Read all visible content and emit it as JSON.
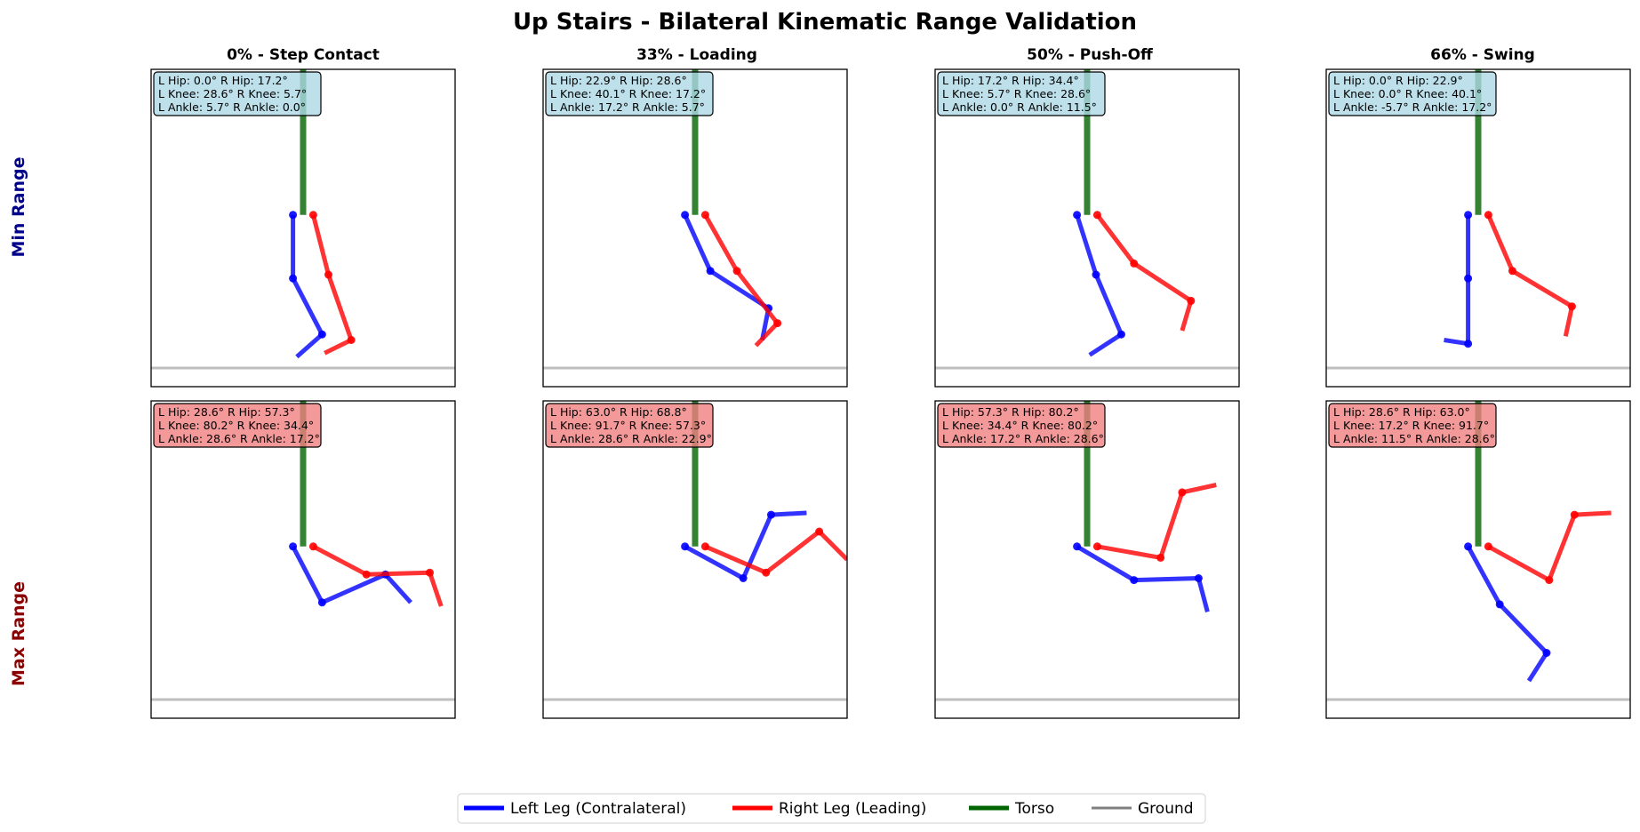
{
  "figure": {
    "title": "Up Stairs - Bilateral Kinematic Range Validation"
  },
  "chart_data": {
    "type": "stick-figure-grid",
    "rows": [
      {
        "key": "min",
        "label": "Min Range",
        "label_color": "#00008b",
        "box_color": "#add8e6"
      },
      {
        "key": "max",
        "label": "Max Range",
        "label_color": "#8b0000",
        "box_color": "#f08080"
      }
    ],
    "columns": [
      {
        "title": "0% - Step Contact"
      },
      {
        "title": "33% - Loading"
      },
      {
        "title": "50% - Push-Off"
      },
      {
        "title": "66% - Swing"
      }
    ],
    "panels": [
      {
        "row": 0,
        "col": 0,
        "angles": {
          "l_hip": 0.0,
          "r_hip": 17.2,
          "l_knee": 28.6,
          "r_knee": 5.7,
          "l_ankle": 5.7,
          "r_ankle": 0.0
        },
        "lines": [
          "L Hip: 0.0°  R Hip: 17.2°",
          "L Knee: 28.6°  R Knee: 5.7°",
          "L Ankle: 5.7°  R Ankle: 0.0°"
        ],
        "left_leg": [
          [
            -0.08,
            0.82
          ],
          [
            -0.08,
            0.48
          ],
          [
            0.15,
            0.18
          ],
          [
            -0.05,
            0.06
          ]
        ],
        "right_leg": [
          [
            0.08,
            0.82
          ],
          [
            0.2,
            0.5
          ],
          [
            0.38,
            0.15
          ],
          [
            0.17,
            0.08
          ]
        ]
      },
      {
        "row": 0,
        "col": 1,
        "angles": {
          "l_hip": 22.9,
          "r_hip": 28.6,
          "l_knee": 40.1,
          "r_knee": 17.2,
          "l_ankle": 17.2,
          "r_ankle": 5.7
        },
        "lines": [
          "L Hip: 22.9°  R Hip: 28.6°",
          "L Knee: 40.1°  R Knee: 17.2°",
          "L Ankle: 17.2°  R Ankle: 5.7°"
        ],
        "left_leg": [
          [
            -0.08,
            0.82
          ],
          [
            0.12,
            0.52
          ],
          [
            0.58,
            0.32
          ],
          [
            0.53,
            0.15
          ]
        ],
        "right_leg": [
          [
            0.08,
            0.82
          ],
          [
            0.33,
            0.52
          ],
          [
            0.65,
            0.24
          ],
          [
            0.48,
            0.12
          ]
        ]
      },
      {
        "row": 0,
        "col": 2,
        "angles": {
          "l_hip": 17.2,
          "r_hip": 34.4,
          "l_knee": 5.7,
          "r_knee": 28.6,
          "l_ankle": 0.0,
          "r_ankle": 11.5
        },
        "lines": [
          "L Hip: 17.2°  R Hip: 34.4°",
          "L Knee: 5.7°  R Knee: 28.6°",
          "L Ankle: 0.0°  R Ankle: 11.5°"
        ],
        "left_leg": [
          [
            -0.08,
            0.82
          ],
          [
            0.07,
            0.5
          ],
          [
            0.27,
            0.18
          ],
          [
            0.02,
            0.07
          ]
        ],
        "right_leg": [
          [
            0.08,
            0.82
          ],
          [
            0.37,
            0.56
          ],
          [
            0.82,
            0.36
          ],
          [
            0.75,
            0.2
          ]
        ]
      },
      {
        "row": 0,
        "col": 3,
        "angles": {
          "l_hip": 0.0,
          "r_hip": 22.9,
          "l_knee": 0.0,
          "r_knee": 40.1,
          "l_ankle": -5.7,
          "r_ankle": 17.2
        },
        "lines": [
          "L Hip: 0.0°  R Hip: 22.9°",
          "L Knee: 0.0°  R Knee: 40.1°",
          "L Ankle: -5.7°  R Ankle: 17.2°"
        ],
        "left_leg": [
          [
            -0.08,
            0.82
          ],
          [
            -0.08,
            0.48
          ],
          [
            -0.08,
            0.13
          ],
          [
            -0.27,
            0.15
          ]
        ],
        "right_leg": [
          [
            0.08,
            0.82
          ],
          [
            0.27,
            0.52
          ],
          [
            0.74,
            0.33
          ],
          [
            0.69,
            0.17
          ]
        ]
      },
      {
        "row": 1,
        "col": 0,
        "angles": {
          "l_hip": 28.6,
          "r_hip": 57.3,
          "l_knee": 80.2,
          "r_knee": 34.4,
          "l_ankle": 28.6,
          "r_ankle": 17.2
        },
        "lines": [
          "L Hip: 28.6°  R Hip: 57.3°",
          "L Knee: 80.2°  R Knee: 34.4°",
          "L Ankle: 28.6°  R Ankle: 17.2°"
        ],
        "left_leg": [
          [
            -0.08,
            0.82
          ],
          [
            0.15,
            0.52
          ],
          [
            0.65,
            0.67
          ],
          [
            0.85,
            0.52
          ]
        ],
        "right_leg": [
          [
            0.08,
            0.82
          ],
          [
            0.5,
            0.67
          ],
          [
            1.0,
            0.68
          ],
          [
            1.09,
            0.5
          ]
        ]
      },
      {
        "row": 1,
        "col": 1,
        "angles": {
          "l_hip": 63.0,
          "r_hip": 68.8,
          "l_knee": 91.7,
          "r_knee": 57.3,
          "l_ankle": 28.6,
          "r_ankle": 22.9
        },
        "lines": [
          "L Hip: 63.0°  R Hip: 68.8°",
          "L Knee: 91.7°  R Knee: 57.3°",
          "L Ankle: 28.6°  R Ankle: 22.9°"
        ],
        "left_leg": [
          [
            -0.08,
            0.82
          ],
          [
            0.38,
            0.65
          ],
          [
            0.6,
            0.99
          ],
          [
            0.88,
            1.0
          ]
        ],
        "right_leg": [
          [
            0.08,
            0.82
          ],
          [
            0.56,
            0.68
          ],
          [
            0.98,
            0.9
          ],
          [
            1.2,
            0.75
          ]
        ]
      },
      {
        "row": 1,
        "col": 2,
        "angles": {
          "l_hip": 57.3,
          "r_hip": 80.2,
          "l_knee": 34.4,
          "r_knee": 80.2,
          "l_ankle": 17.2,
          "r_ankle": 28.6
        },
        "lines": [
          "L Hip: 57.3°  R Hip: 80.2°",
          "L Knee: 34.4°  R Knee: 80.2°",
          "L Ankle: 17.2°  R Ankle: 28.6°"
        ],
        "left_leg": [
          [
            -0.08,
            0.82
          ],
          [
            0.37,
            0.64
          ],
          [
            0.88,
            0.65
          ],
          [
            0.95,
            0.47
          ]
        ],
        "right_leg": [
          [
            0.08,
            0.82
          ],
          [
            0.58,
            0.76
          ],
          [
            0.75,
            1.11
          ],
          [
            1.02,
            1.15
          ]
        ]
      },
      {
        "row": 1,
        "col": 3,
        "angles": {
          "l_hip": 28.6,
          "r_hip": 63.0,
          "l_knee": 17.2,
          "r_knee": 91.7,
          "l_ankle": 11.5,
          "r_ankle": 28.6
        },
        "lines": [
          "L Hip: 28.6°  R Hip: 63.0°",
          "L Knee: 17.2°  R Knee: 91.7°",
          "L Ankle: 11.5°  R Ankle: 28.6°"
        ],
        "left_leg": [
          [
            -0.08,
            0.82
          ],
          [
            0.17,
            0.51
          ],
          [
            0.54,
            0.25
          ],
          [
            0.4,
            0.1
          ]
        ],
        "right_leg": [
          [
            0.08,
            0.82
          ],
          [
            0.56,
            0.64
          ],
          [
            0.76,
            0.99
          ],
          [
            1.05,
            1.0
          ]
        ]
      }
    ],
    "torso": [
      [
        0,
        0.82
      ],
      [
        0,
        1.6
      ]
    ],
    "ground_y": 0.0,
    "xlim": [
      -1.2,
      1.2
    ],
    "ylim": [
      -0.1,
      1.6
    ],
    "legend": {
      "placement": "bottom-center",
      "entries": [
        {
          "label": "Left Leg (Contralateral)",
          "color": "#0000ff"
        },
        {
          "label": "Right Leg (Leading)",
          "color": "#ff0000"
        },
        {
          "label": "Torso",
          "color": "#006400"
        },
        {
          "label": "Ground",
          "color": "#808080"
        }
      ]
    },
    "colors": {
      "left_leg": "#0000ff",
      "right_leg": "#ff0000",
      "torso": "#006400",
      "ground": "#808080"
    }
  }
}
